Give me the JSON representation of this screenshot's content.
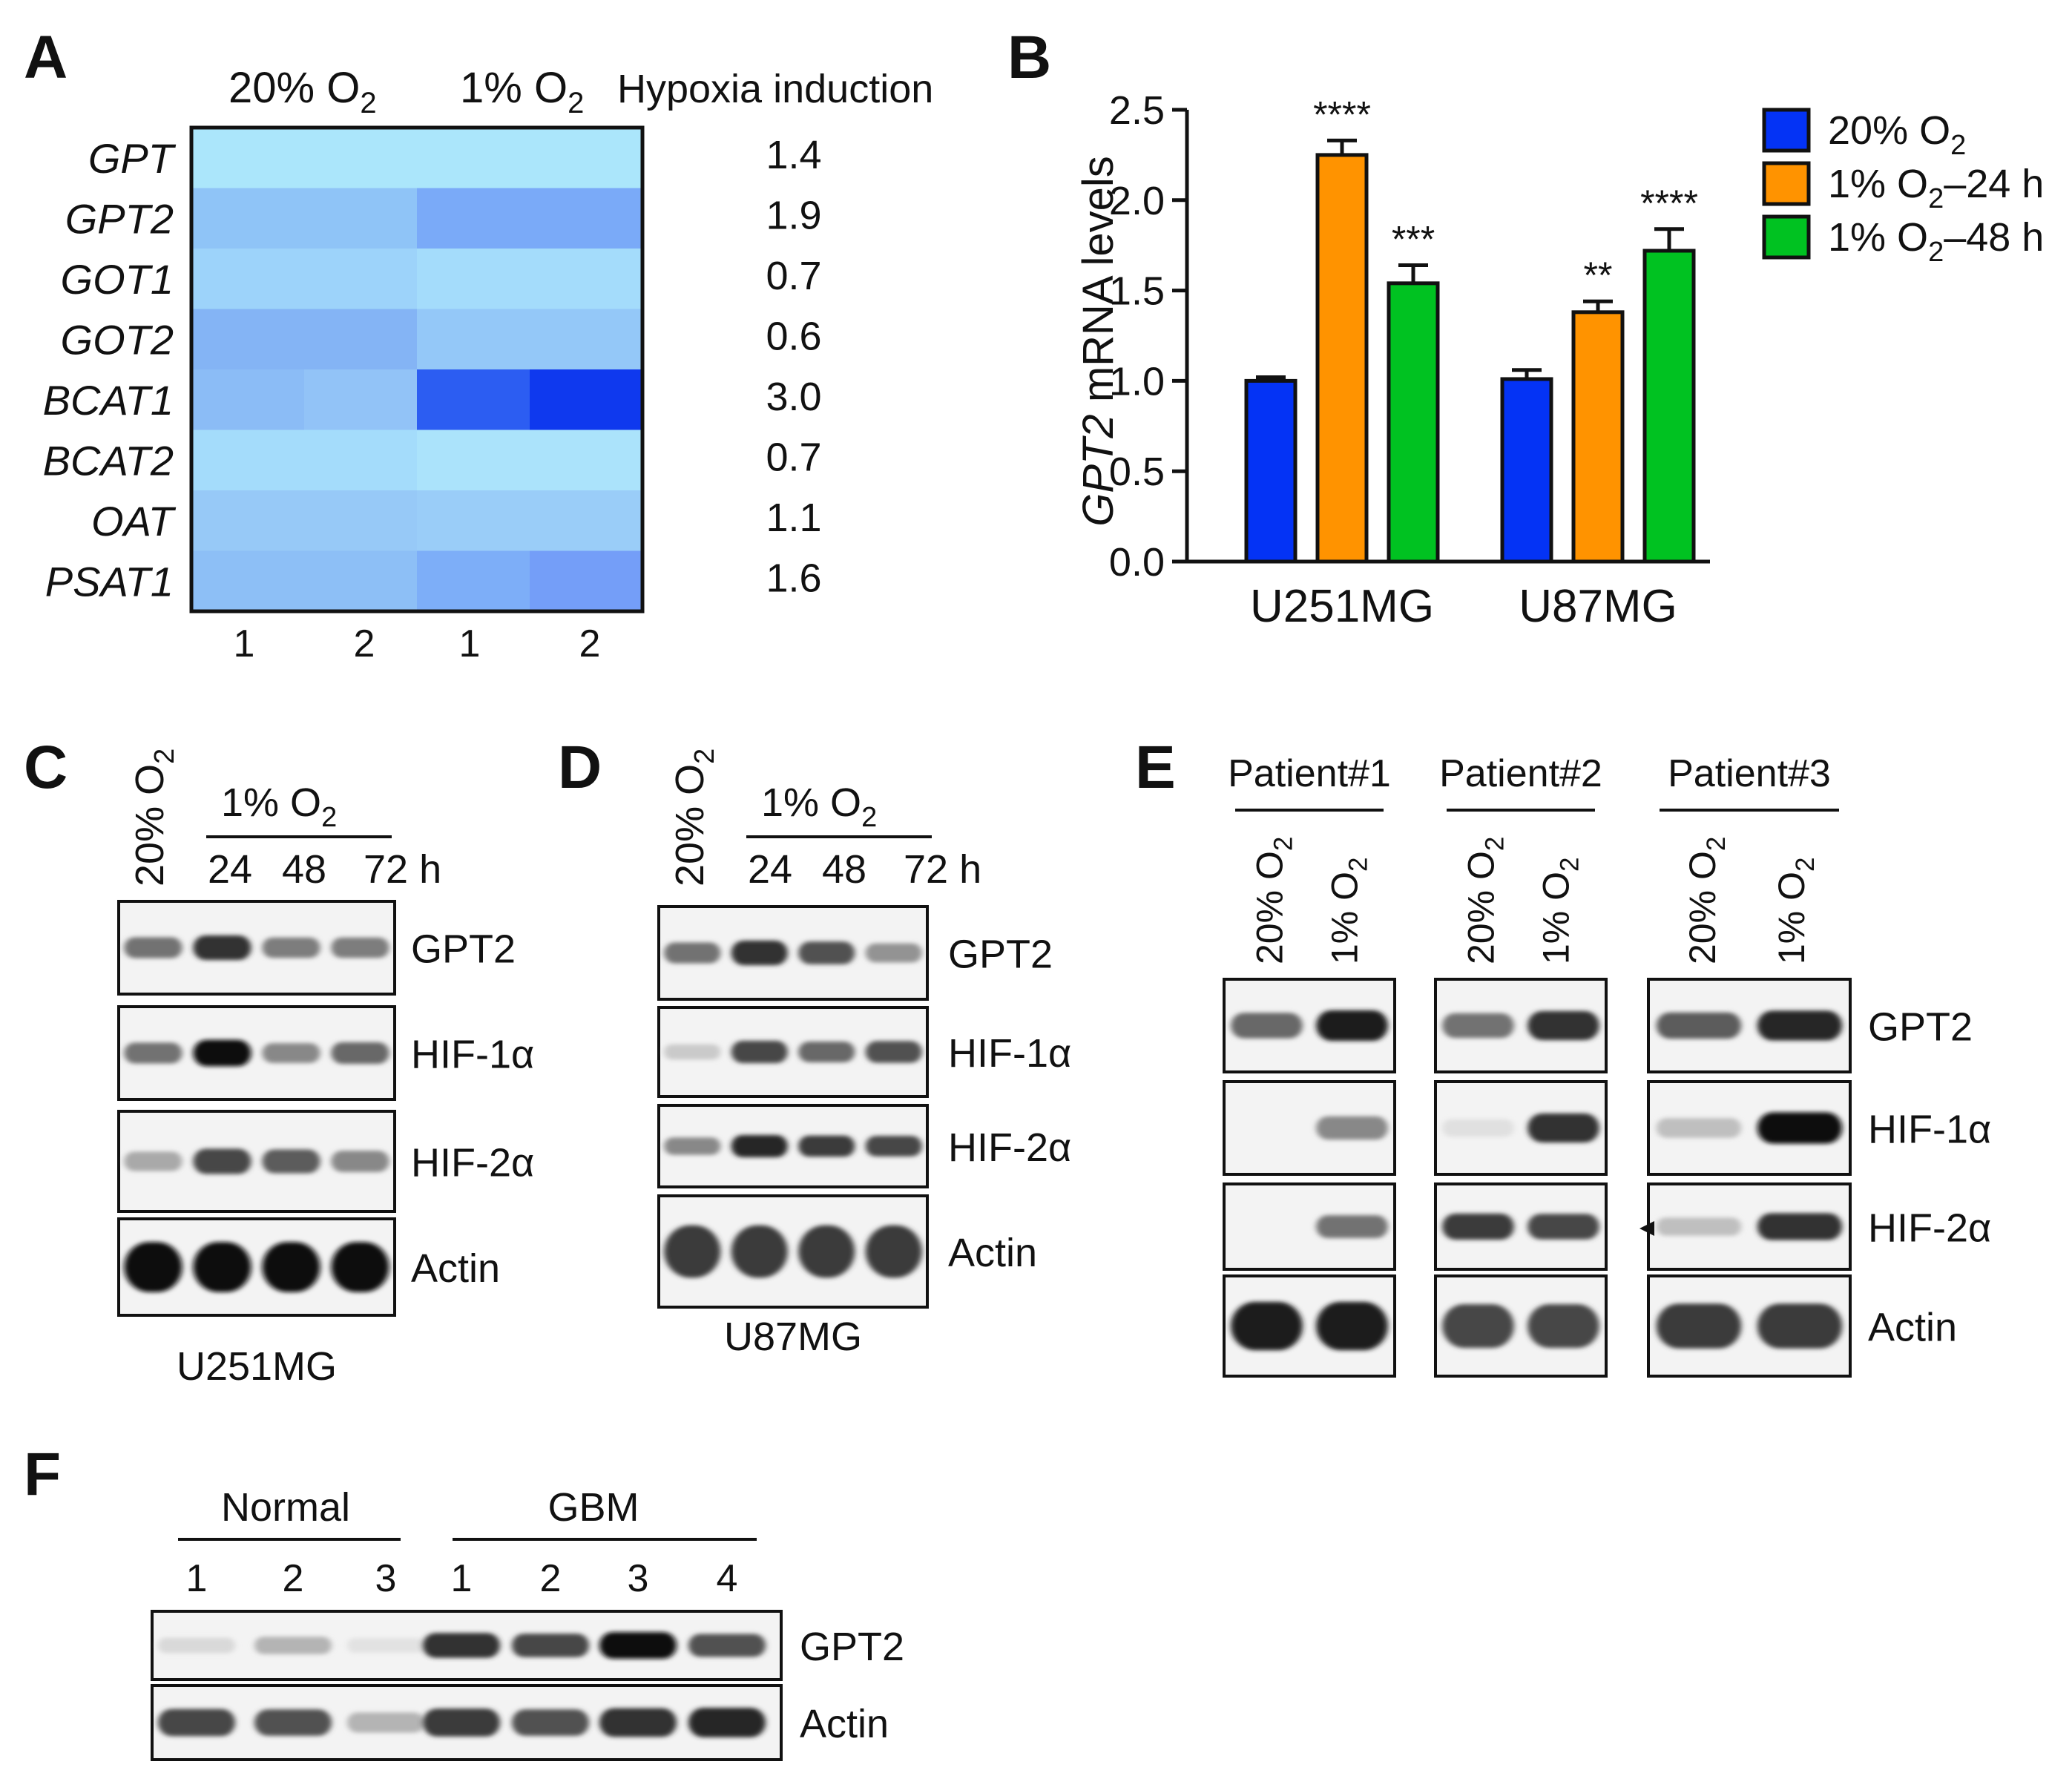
{
  "panels": {
    "a": {
      "letter": "A",
      "header_normoxia": "20% O",
      "header_hypoxia": "1% O",
      "subscript": "2",
      "header_induction": "Hypoxia induction",
      "replicates": [
        "1",
        "2",
        "1",
        "2"
      ],
      "genes": [
        "GPT",
        "GPT2",
        "GOT1",
        "GOT2",
        "BCAT1",
        "BCAT2",
        "OAT",
        "PSAT1"
      ],
      "induction": [
        "1.4",
        "1.9",
        "0.7",
        "0.6",
        "3.0",
        "0.7",
        "1.1",
        "1.6"
      ],
      "heatmap_colors": [
        [
          "#abe6fb",
          "#abe6fb",
          "#abe6fb",
          "#abe6fb"
        ],
        [
          "#8fc4f7",
          "#8fc4f7",
          "#7aaaf8",
          "#7aaaf8"
        ],
        [
          "#9dd3fa",
          "#9dd3fa",
          "#a4dcfb",
          "#a4dcfb"
        ],
        [
          "#84b4f5",
          "#84b4f5",
          "#94c8f8",
          "#94c8f8"
        ],
        [
          "#8bbcf6",
          "#92c3f7",
          "#2c5df2",
          "#0f39ee"
        ],
        [
          "#a4dcfb",
          "#a4dcfb",
          "#abe3fb",
          "#abe3fb"
        ],
        [
          "#97c9f7",
          "#97c9f7",
          "#9acdf8",
          "#9acdf8"
        ],
        [
          "#8dbff6",
          "#8dbff6",
          "#7daef8",
          "#749ef8"
        ]
      ]
    },
    "b": {
      "letter": "B",
      "chart_data": {
        "type": "bar",
        "ylabel_gene": "GPT2",
        "ylabel_rest": " mRNA levels",
        "ylim": [
          0,
          2.5
        ],
        "yticks": [
          "0.0",
          "0.5",
          "1.0",
          "1.5",
          "2.0",
          "2.5"
        ],
        "categories": [
          "U251MG",
          "U87MG"
        ],
        "series": [
          {
            "legend_main": "20% O",
            "legend_sub": "2",
            "legend_tail": "",
            "color": "#0433f5",
            "values": [
              1.0,
              1.01
            ],
            "errors": [
              0.02,
              0.05
            ],
            "sig": [
              "",
              ""
            ]
          },
          {
            "legend_main": "1% O",
            "legend_sub": "2",
            "legend_tail": "–24 h",
            "color": "#ff9300",
            "values": [
              2.25,
              1.38
            ],
            "errors": [
              0.08,
              0.06
            ],
            "sig": [
              "****",
              "**"
            ]
          },
          {
            "legend_main": "1% O",
            "legend_sub": "2",
            "legend_tail": "–48 h",
            "color": "#00c221",
            "values": [
              1.54,
              1.72
            ],
            "errors": [
              0.1,
              0.12
            ],
            "sig": [
              "***",
              "****"
            ]
          }
        ]
      }
    },
    "c": {
      "letter": "C",
      "col_normoxia": "20% O",
      "group_label": "1% O",
      "subscript": "2",
      "times": [
        "24",
        "48",
        "72 h"
      ],
      "proteins": [
        "GPT2",
        "HIF-1α",
        "HIF-2α",
        "Actin"
      ],
      "cell_line": "U251MG",
      "band_intensity": [
        [
          0.55,
          0.85,
          0.5,
          0.5
        ],
        [
          0.55,
          1.0,
          0.45,
          0.6
        ],
        [
          0.3,
          0.75,
          0.65,
          0.45
        ],
        [
          1.0,
          1.0,
          1.0,
          1.0
        ]
      ]
    },
    "d": {
      "letter": "D",
      "col_normoxia": "20% O",
      "group_label": "1% O",
      "subscript": "2",
      "times": [
        "24",
        "48",
        "72 h"
      ],
      "proteins": [
        "GPT2",
        "HIF-1α",
        "HIF-2α",
        "Actin"
      ],
      "cell_line": "U87MG",
      "band_intensity": [
        [
          0.55,
          0.85,
          0.7,
          0.4
        ],
        [
          0.15,
          0.75,
          0.6,
          0.7
        ],
        [
          0.45,
          0.9,
          0.8,
          0.75
        ],
        [
          0.8,
          0.8,
          0.8,
          0.8
        ]
      ]
    },
    "e": {
      "letter": "E",
      "patients": [
        "Patient#1",
        "Patient#2",
        "Patient#3"
      ],
      "lane_normoxia": "20% O",
      "lane_hypoxia": "1% O",
      "subscript": "2",
      "proteins": [
        "GPT2",
        "HIF-1α",
        "HIF-2α",
        "Actin"
      ],
      "band_intensity": [
        [
          [
            0.6,
            0.95
          ],
          [
            0.55,
            0.85
          ],
          [
            0.65,
            0.9
          ]
        ],
        [
          [
            0.02,
            0.45
          ],
          [
            0.05,
            0.85
          ],
          [
            0.2,
            1.0
          ]
        ],
        [
          [
            0.02,
            0.55
          ],
          [
            0.8,
            0.75
          ],
          [
            0.2,
            0.85
          ]
        ],
        [
          [
            0.95,
            0.95
          ],
          [
            0.75,
            0.75
          ],
          [
            0.8,
            0.8
          ]
        ]
      ]
    },
    "f": {
      "letter": "F",
      "group_normal": "Normal",
      "group_gbm": "GBM",
      "normal_lanes": [
        "1",
        "2",
        "3"
      ],
      "gbm_lanes": [
        "1",
        "2",
        "3",
        "4"
      ],
      "proteins": [
        "GPT2",
        "Actin"
      ],
      "band_intensity": [
        [
          0.08,
          0.25,
          0.04,
          0.85,
          0.75,
          1.0,
          0.7
        ],
        [
          0.75,
          0.7,
          0.25,
          0.8,
          0.7,
          0.85,
          0.9
        ]
      ]
    }
  }
}
